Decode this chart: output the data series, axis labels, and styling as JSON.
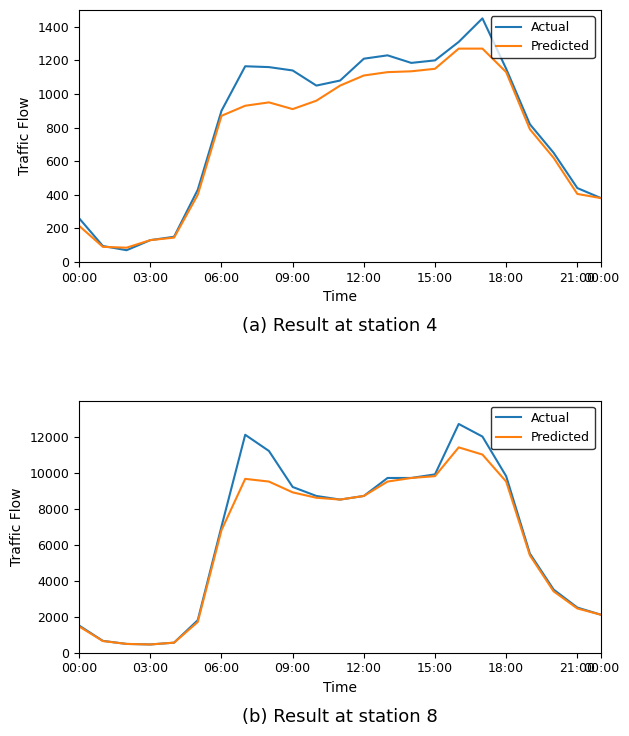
{
  "station4": {
    "title": "(a) Result at station 4",
    "ylabel": "Traffic Flow",
    "xlabel": "Time",
    "actual": [
      260,
      95,
      70,
      130,
      150,
      430,
      900,
      1165,
      1160,
      1140,
      1050,
      1080,
      1210,
      1230,
      1185,
      1200,
      1310,
      1450,
      1150,
      820,
      650,
      440,
      380
    ],
    "predicted": [
      215,
      90,
      85,
      130,
      145,
      400,
      870,
      930,
      950,
      910,
      960,
      1050,
      1110,
      1130,
      1135,
      1150,
      1270,
      1270,
      1130,
      790,
      620,
      405,
      380
    ],
    "ylim": [
      0,
      1500
    ],
    "yticks": [
      0,
      200,
      400,
      600,
      800,
      1000,
      1200,
      1400
    ]
  },
  "station8": {
    "title": "(b) Result at station 8",
    "ylabel": "Traffic Flow",
    "xlabel": "Time",
    "actual": [
      1500,
      650,
      480,
      450,
      550,
      1800,
      7000,
      12100,
      11200,
      9200,
      8700,
      8500,
      8700,
      9700,
      9700,
      9900,
      12700,
      12000,
      9800,
      5500,
      3500,
      2500,
      2100
    ],
    "predicted": [
      1450,
      640,
      480,
      450,
      550,
      1700,
      6800,
      9650,
      9500,
      8900,
      8600,
      8500,
      8700,
      9500,
      9700,
      9800,
      11400,
      11000,
      9500,
      5400,
      3400,
      2450,
      2100
    ],
    "ylim": [
      0,
      14000
    ],
    "yticks": [
      0,
      2000,
      4000,
      6000,
      8000,
      10000,
      12000
    ]
  },
  "time_labels_count": 23,
  "xtick_positions": [
    0,
    3,
    6,
    9,
    12,
    15,
    18,
    21,
    22
  ],
  "xtick_labels": [
    "00:00",
    "03:00",
    "06:00",
    "09:00",
    "12:00",
    "15:00",
    "18:00",
    "21:00",
    "00:00"
  ],
  "actual_color": "#1f77b4",
  "predicted_color": "#ff7f0e",
  "linewidth": 1.5,
  "legend_actual": "Actual",
  "legend_predicted": "Predicted",
  "caption_fontsize": 13
}
